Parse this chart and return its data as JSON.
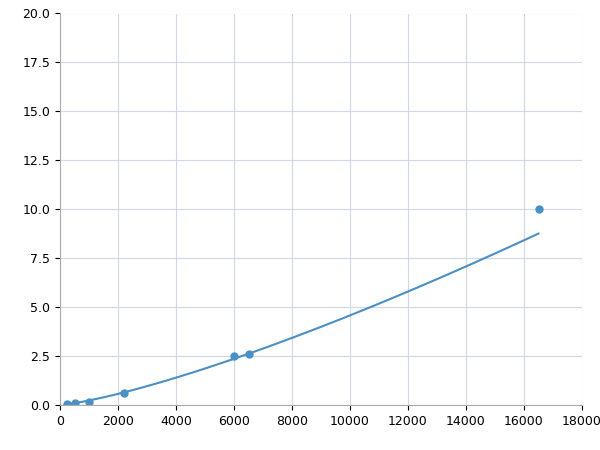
{
  "x_data": [
    250,
    500,
    1000,
    2200,
    6000,
    6500,
    16500
  ],
  "y_data": [
    0.05,
    0.1,
    0.15,
    0.6,
    2.5,
    2.6,
    10.0
  ],
  "line_color": "#4a90c4",
  "marker_color": "#4a90c4",
  "marker_size": 5,
  "linewidth": 1.5,
  "xlim": [
    0,
    18000
  ],
  "ylim": [
    0,
    20.0
  ],
  "xticks": [
    0,
    2000,
    4000,
    6000,
    8000,
    10000,
    12000,
    14000,
    16000,
    18000
  ],
  "yticks": [
    0.0,
    2.5,
    5.0,
    7.5,
    10.0,
    12.5,
    15.0,
    17.5,
    20.0
  ],
  "grid_color": "#d0d8e8",
  "background_color": "#ffffff",
  "figsize": [
    6.0,
    4.5
  ],
  "dpi": 100
}
